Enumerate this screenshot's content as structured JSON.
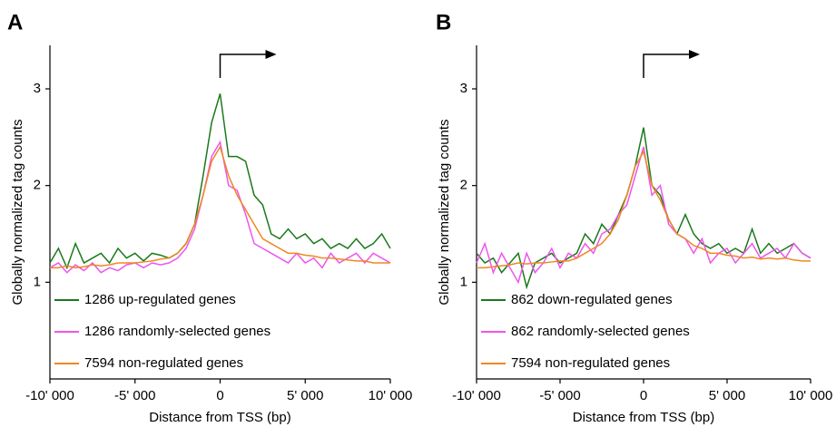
{
  "chart_data": [
    {
      "type": "line",
      "panel_label": "A",
      "xlabel": "Distance from TSS (bp)",
      "ylabel": "Globally normalized tag counts",
      "xlim": [
        -10000,
        10000
      ],
      "ylim": [
        0,
        3.45
      ],
      "xticks": [
        {
          "value": -10000,
          "label": "-10' 000"
        },
        {
          "value": -5000,
          "label": "-5' 000"
        },
        0,
        {
          "value": 5000,
          "label": "5' 000"
        },
        {
          "value": 10000,
          "label": "10' 000"
        }
      ],
      "yticks": [
        1,
        2,
        3
      ],
      "legend": "lower left",
      "x": [
        -10000,
        -9500,
        -9000,
        -8500,
        -8000,
        -7500,
        -7000,
        -6500,
        -6000,
        -5500,
        -5000,
        -4500,
        -4000,
        -3500,
        -3000,
        -2500,
        -2000,
        -1500,
        -1000,
        -500,
        0,
        500,
        1000,
        1500,
        2000,
        2500,
        3000,
        3500,
        4000,
        4500,
        5000,
        5500,
        6000,
        6500,
        7000,
        7500,
        8000,
        8500,
        9000,
        9500,
        10000
      ],
      "series": [
        {
          "name": "1286 up-regulated genes",
          "color": "#1a7a1a",
          "values": [
            1.2,
            1.35,
            1.15,
            1.4,
            1.2,
            1.25,
            1.3,
            1.2,
            1.35,
            1.25,
            1.3,
            1.22,
            1.3,
            1.28,
            1.25,
            1.3,
            1.4,
            1.6,
            2.1,
            2.65,
            2.95,
            2.3,
            2.3,
            2.25,
            1.9,
            1.8,
            1.5,
            1.45,
            1.55,
            1.45,
            1.5,
            1.4,
            1.45,
            1.35,
            1.4,
            1.35,
            1.45,
            1.35,
            1.4,
            1.5,
            1.35
          ]
        },
        {
          "name": "1286 randomly-selected genes",
          "color": "#ee55ee",
          "values": [
            1.15,
            1.2,
            1.1,
            1.18,
            1.12,
            1.2,
            1.1,
            1.15,
            1.12,
            1.18,
            1.2,
            1.15,
            1.2,
            1.18,
            1.2,
            1.25,
            1.35,
            1.55,
            1.9,
            2.3,
            2.45,
            2.0,
            1.95,
            1.7,
            1.4,
            1.35,
            1.3,
            1.25,
            1.2,
            1.3,
            1.2,
            1.25,
            1.15,
            1.3,
            1.2,
            1.25,
            1.3,
            1.2,
            1.3,
            1.25,
            1.2
          ]
        },
        {
          "name": "7594 non-regulated genes",
          "color": "#ee8822",
          "values": [
            1.15,
            1.15,
            1.17,
            1.15,
            1.16,
            1.18,
            1.17,
            1.18,
            1.2,
            1.2,
            1.2,
            1.21,
            1.22,
            1.24,
            1.25,
            1.3,
            1.4,
            1.6,
            1.9,
            2.25,
            2.4,
            2.1,
            1.9,
            1.75,
            1.6,
            1.45,
            1.4,
            1.35,
            1.3,
            1.3,
            1.28,
            1.27,
            1.25,
            1.25,
            1.24,
            1.23,
            1.22,
            1.22,
            1.2,
            1.2,
            1.2
          ]
        }
      ]
    },
    {
      "type": "line",
      "panel_label": "B",
      "xlabel": "Distance from TSS (bp)",
      "ylabel": "Globally normalized tag counts",
      "xlim": [
        -10000,
        10000
      ],
      "ylim": [
        0,
        3.45
      ],
      "xticks": [
        {
          "value": -10000,
          "label": "-10' 000"
        },
        {
          "value": -5000,
          "label": "-5' 000"
        },
        0,
        {
          "value": 5000,
          "label": "5' 000"
        },
        {
          "value": 10000,
          "label": "10' 000"
        }
      ],
      "yticks": [
        1,
        2,
        3
      ],
      "legend": "lower left",
      "x": [
        -10000,
        -9500,
        -9000,
        -8500,
        -8000,
        -7500,
        -7000,
        -6500,
        -6000,
        -5500,
        -5000,
        -4500,
        -4000,
        -3500,
        -3000,
        -2500,
        -2000,
        -1500,
        -1000,
        -500,
        0,
        500,
        1000,
        1500,
        2000,
        2500,
        3000,
        3500,
        4000,
        4500,
        5000,
        5500,
        6000,
        6500,
        7000,
        7500,
        8000,
        8500,
        9000,
        9500,
        10000
      ],
      "series": [
        {
          "name": "862 down-regulated genes",
          "color": "#1a7a1a",
          "values": [
            1.3,
            1.2,
            1.25,
            1.1,
            1.2,
            1.3,
            0.95,
            1.2,
            1.25,
            1.3,
            1.2,
            1.25,
            1.3,
            1.5,
            1.4,
            1.6,
            1.5,
            1.7,
            1.9,
            2.2,
            2.6,
            2.0,
            1.9,
            1.65,
            1.5,
            1.7,
            1.5,
            1.4,
            1.35,
            1.4,
            1.3,
            1.35,
            1.3,
            1.55,
            1.3,
            1.4,
            1.3,
            1.35,
            1.4,
            1.3,
            1.25
          ]
        },
        {
          "name": "862 randomly-selected genes",
          "color": "#ee55ee",
          "values": [
            1.2,
            1.4,
            1.1,
            1.3,
            1.15,
            1.0,
            1.3,
            1.1,
            1.2,
            1.35,
            1.15,
            1.3,
            1.25,
            1.4,
            1.3,
            1.5,
            1.55,
            1.7,
            1.8,
            2.1,
            2.4,
            1.9,
            2.0,
            1.6,
            1.5,
            1.45,
            1.3,
            1.45,
            1.2,
            1.3,
            1.35,
            1.2,
            1.3,
            1.4,
            1.25,
            1.3,
            1.35,
            1.25,
            1.4,
            1.3,
            1.25
          ]
        },
        {
          "name": "7594 non-regulated genes",
          "color": "#ee8822",
          "values": [
            1.15,
            1.15,
            1.16,
            1.17,
            1.18,
            1.2,
            1.19,
            1.2,
            1.2,
            1.21,
            1.22,
            1.22,
            1.25,
            1.3,
            1.35,
            1.4,
            1.5,
            1.65,
            1.9,
            2.2,
            2.35,
            2.0,
            1.85,
            1.65,
            1.5,
            1.45,
            1.38,
            1.35,
            1.3,
            1.3,
            1.28,
            1.27,
            1.25,
            1.26,
            1.24,
            1.25,
            1.24,
            1.25,
            1.23,
            1.22,
            1.22
          ]
        }
      ]
    }
  ]
}
